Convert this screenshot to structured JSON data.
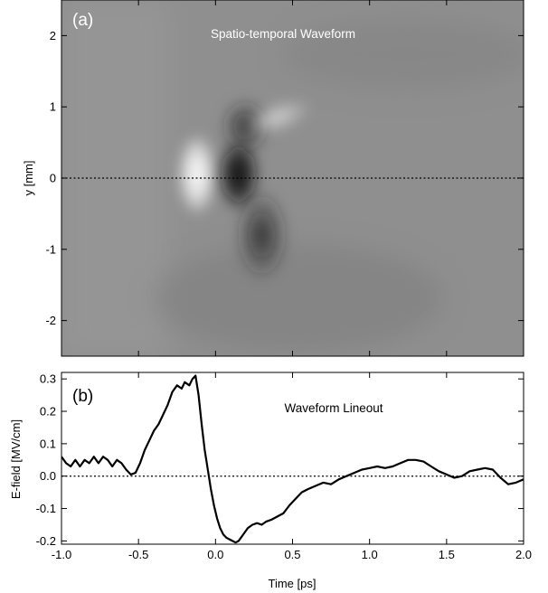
{
  "chart_data": [
    {
      "type": "heatmap",
      "panel_label": "(a)",
      "title": "Spatio-temporal Waveform",
      "ylabel": "y [mm]",
      "xlim": [
        -1.0,
        2.0
      ],
      "ylim": [
        -2.5,
        2.5
      ],
      "yticks": [
        "-2",
        "-1",
        "0",
        "1",
        "2"
      ],
      "reference_line_y": 0,
      "grid": false,
      "colormap": "grayscale",
      "features": [
        {
          "t": -0.12,
          "y": 0.05,
          "sign": "positive",
          "amplitude": 1.0
        },
        {
          "t": 0.15,
          "y": 0.05,
          "sign": "negative",
          "amplitude": 1.0
        },
        {
          "t": 0.4,
          "y": 0.85,
          "sign": "positive",
          "amplitude": 0.55
        },
        {
          "t": 0.3,
          "y": -0.8,
          "sign": "negative",
          "amplitude": 0.5
        }
      ]
    },
    {
      "type": "line",
      "panel_label": "(b)",
      "title": "Waveform Lineout",
      "xlabel": "Time [ps]",
      "ylabel": "E-field [MV/cm]",
      "xlim": [
        -1.0,
        2.0
      ],
      "ylim": [
        -0.21,
        0.32
      ],
      "xticks": [
        "-1.0",
        "-0.5",
        "0.0",
        "0.5",
        "1.0",
        "1.5",
        "2.0"
      ],
      "yticks": [
        "-0.2",
        "-0.1",
        "0.0",
        "0.1",
        "0.2",
        "0.3"
      ],
      "reference_line_y": 0,
      "grid": false,
      "series": [
        {
          "color": "#000000",
          "x": [
            -1.0,
            -0.97,
            -0.94,
            -0.91,
            -0.88,
            -0.85,
            -0.82,
            -0.79,
            -0.76,
            -0.73,
            -0.7,
            -0.67,
            -0.64,
            -0.61,
            -0.58,
            -0.55,
            -0.52,
            -0.49,
            -0.46,
            -0.43,
            -0.4,
            -0.37,
            -0.34,
            -0.31,
            -0.28,
            -0.25,
            -0.22,
            -0.2,
            -0.17,
            -0.15,
            -0.13,
            -0.11,
            -0.09,
            -0.07,
            -0.05,
            -0.03,
            -0.01,
            0.01,
            0.03,
            0.05,
            0.07,
            0.09,
            0.11,
            0.13,
            0.15,
            0.18,
            0.21,
            0.24,
            0.27,
            0.3,
            0.33,
            0.36,
            0.4,
            0.44,
            0.48,
            0.52,
            0.56,
            0.6,
            0.65,
            0.7,
            0.75,
            0.8,
            0.85,
            0.9,
            0.95,
            1.0,
            1.05,
            1.1,
            1.15,
            1.2,
            1.25,
            1.3,
            1.35,
            1.4,
            1.45,
            1.5,
            1.55,
            1.6,
            1.65,
            1.7,
            1.75,
            1.8,
            1.85,
            1.9,
            1.95,
            2.0
          ],
          "y": [
            0.06,
            0.04,
            0.03,
            0.05,
            0.03,
            0.05,
            0.04,
            0.06,
            0.04,
            0.06,
            0.05,
            0.03,
            0.05,
            0.04,
            0.02,
            0.005,
            0.01,
            0.04,
            0.08,
            0.11,
            0.14,
            0.16,
            0.19,
            0.22,
            0.26,
            0.28,
            0.27,
            0.29,
            0.28,
            0.3,
            0.31,
            0.25,
            0.16,
            0.08,
            0.02,
            -0.04,
            -0.09,
            -0.13,
            -0.16,
            -0.18,
            -0.19,
            -0.195,
            -0.2,
            -0.205,
            -0.2,
            -0.18,
            -0.16,
            -0.15,
            -0.145,
            -0.15,
            -0.14,
            -0.135,
            -0.125,
            -0.115,
            -0.09,
            -0.07,
            -0.05,
            -0.04,
            -0.03,
            -0.02,
            -0.025,
            -0.01,
            0.0,
            0.01,
            0.02,
            0.025,
            0.03,
            0.025,
            0.03,
            0.04,
            0.05,
            0.05,
            0.045,
            0.03,
            0.015,
            0.005,
            -0.005,
            0.0,
            0.015,
            0.02,
            0.025,
            0.02,
            -0.005,
            -0.025,
            -0.02,
            -0.01
          ]
        }
      ]
    }
  ]
}
